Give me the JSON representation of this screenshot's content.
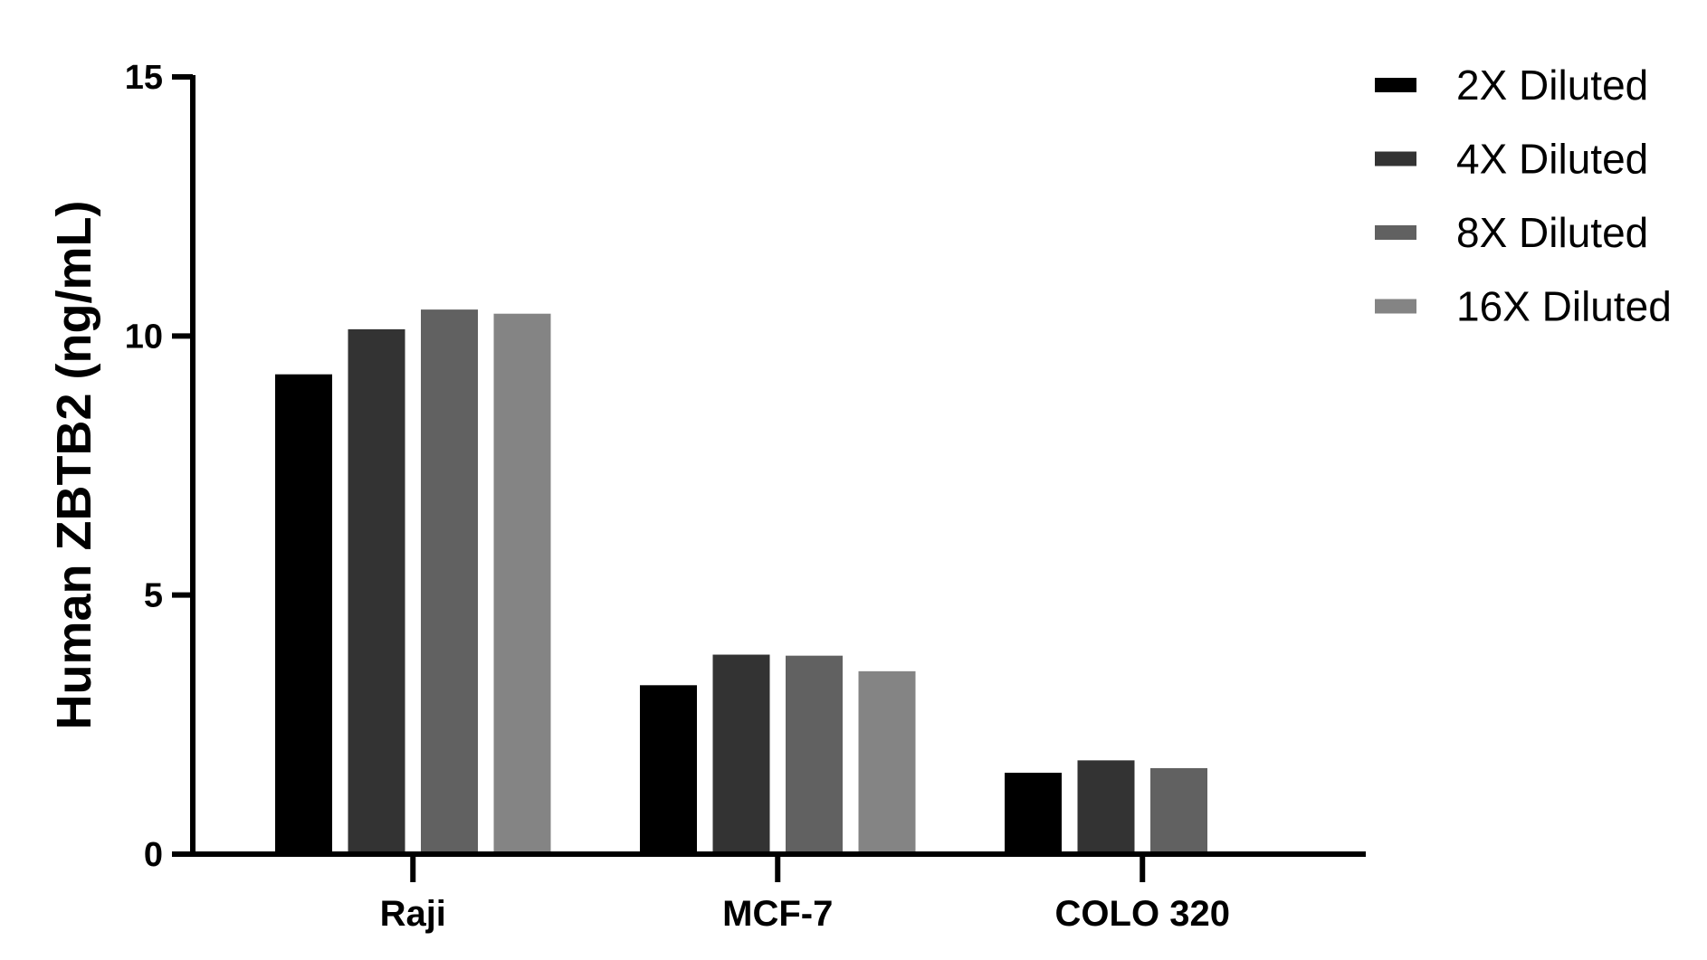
{
  "chart_data": {
    "type": "bar",
    "title": "",
    "xlabel": "",
    "ylabel": "Human ZBTB2 (ng/mL)",
    "ylim": [
      0,
      15
    ],
    "yticks": [
      "0",
      "5",
      "10",
      "15"
    ],
    "grid": false,
    "legend_position": "top-right",
    "categories": [
      "Raji",
      "MCF-7",
      "COLO 320"
    ],
    "series": [
      {
        "name": "2X Diluted",
        "color": "#000000",
        "values": [
          9.26,
          3.26,
          1.57
        ]
      },
      {
        "name": "4X Diluted",
        "color": "#333333",
        "values": [
          10.13,
          3.85,
          1.81
        ]
      },
      {
        "name": "8X Diluted",
        "color": "#616161",
        "values": [
          10.51,
          3.83,
          1.66
        ]
      },
      {
        "name": "16X Diluted",
        "color": "#848484",
        "values": [
          10.43,
          3.53,
          null
        ]
      }
    ]
  }
}
